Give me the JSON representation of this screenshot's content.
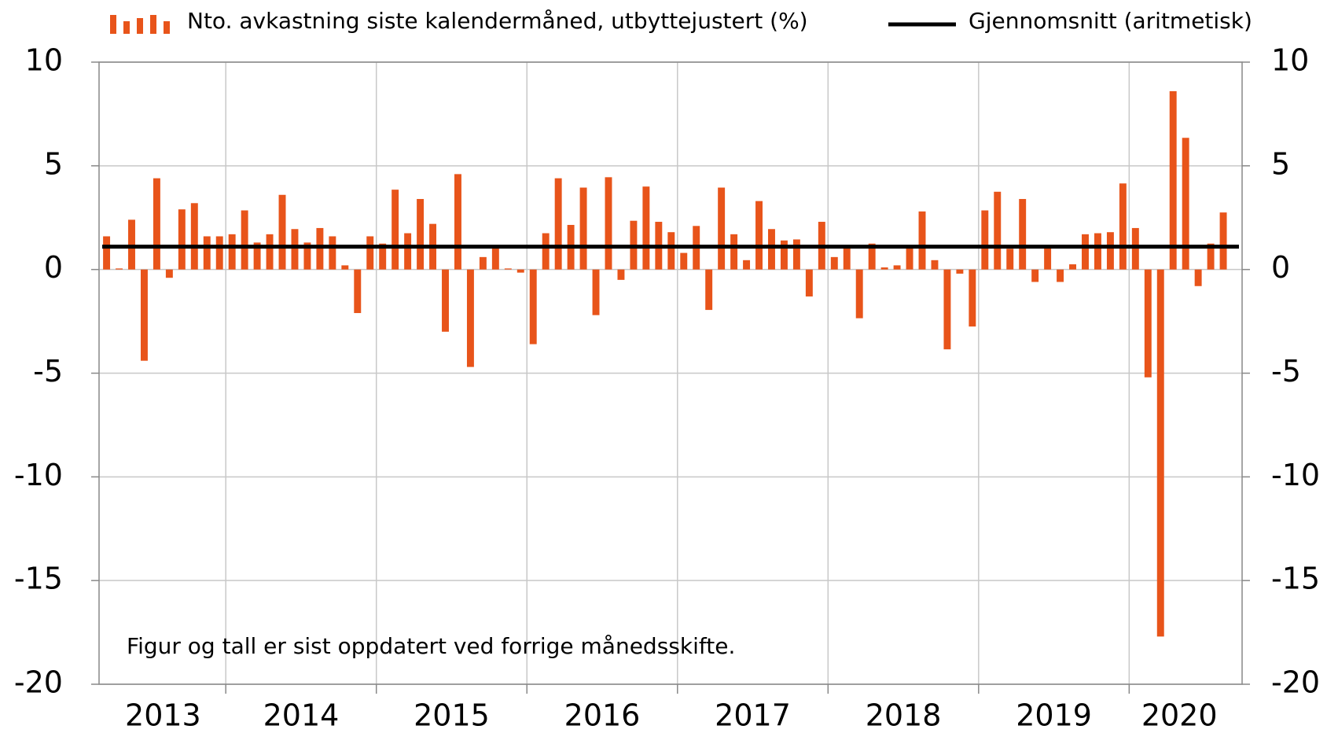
{
  "chart_data": {
    "type": "bar",
    "legend": {
      "bar": "Nto. avkastning siste kalendermåned, utbyttejustert (%)",
      "line": "Gjennomsnitt (aritmetisk)"
    },
    "annotation": "Figur og tall er sist oppdatert ved forrige månedsskifte.",
    "color": "#e8541a",
    "mean_color": "#000000",
    "categories": [
      "2013",
      "2013",
      "2013",
      "2013",
      "2013",
      "2013",
      "2013",
      "2013",
      "2013",
      "2013",
      "2014",
      "2014",
      "2014",
      "2014",
      "2014",
      "2014",
      "2014",
      "2014",
      "2014",
      "2014",
      "2014",
      "2014",
      "2015",
      "2015",
      "2015",
      "2015",
      "2015",
      "2015",
      "2015",
      "2015",
      "2015",
      "2015",
      "2015",
      "2015",
      "2016",
      "2016",
      "2016",
      "2016",
      "2016",
      "2016",
      "2016",
      "2016",
      "2016",
      "2016",
      "2016",
      "2016",
      "2017",
      "2017",
      "2017",
      "2017",
      "2017",
      "2017",
      "2017",
      "2017",
      "2017",
      "2017",
      "2017",
      "2017",
      "2018",
      "2018",
      "2018",
      "2018",
      "2018",
      "2018",
      "2018",
      "2018",
      "2018",
      "2018",
      "2018",
      "2018",
      "2019",
      "2019",
      "2019",
      "2019",
      "2019",
      "2019",
      "2019",
      "2019",
      "2019",
      "2019",
      "2019",
      "2019",
      "2020",
      "2020",
      "2020",
      "2020",
      "2020",
      "2020",
      "2020",
      "2020"
    ],
    "values": [
      1.6,
      0.05,
      2.4,
      -4.4,
      4.4,
      -0.4,
      2.9,
      3.2,
      1.6,
      1.6,
      1.7,
      2.85,
      1.3,
      1.7,
      3.6,
      1.95,
      1.3,
      2.0,
      1.6,
      0.2,
      -2.1,
      1.6,
      1.25,
      3.85,
      1.75,
      3.4,
      2.2,
      -3.0,
      4.6,
      -4.7,
      0.6,
      1.15,
      0.05,
      -0.15,
      -3.6,
      1.75,
      4.4,
      2.15,
      3.95,
      -2.2,
      4.45,
      -0.5,
      2.35,
      4.0,
      2.3,
      1.8,
      0.8,
      2.1,
      -1.95,
      3.95,
      1.7,
      0.45,
      3.3,
      1.95,
      1.4,
      1.45,
      -1.3,
      2.3,
      0.6,
      1.15,
      -2.35,
      1.25,
      0.1,
      0.2,
      1.1,
      2.8,
      0.45,
      -3.85,
      -0.2,
      -2.75,
      2.85,
      3.75,
      1.0,
      3.4,
      -0.6,
      1.05,
      -0.6,
      0.25,
      1.7,
      1.75,
      1.8,
      4.15,
      2.0,
      -5.2,
      -17.7,
      8.6,
      6.35,
      -0.8,
      1.25,
      2.75
    ],
    "mean": 1.1,
    "ylim": [
      -20,
      10
    ],
    "yticks": [
      -20,
      -15,
      -10,
      -5,
      0,
      5,
      10
    ],
    "grid": true
  }
}
